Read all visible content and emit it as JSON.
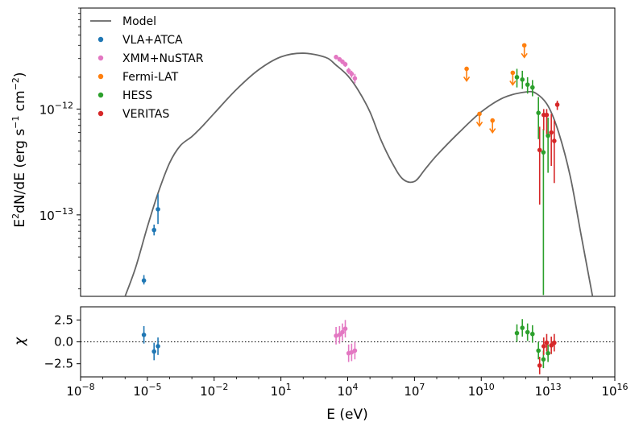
{
  "chart_data": [
    {
      "type": "scatter",
      "panel": "sed",
      "xscale": "log",
      "yscale": "log",
      "xlim": [
        1e-08,
        1e+16
      ],
      "ylim": [
        1.7e-14,
        9e-12
      ],
      "xlabel": "E (eV)",
      "ylabel": {
        "prefix": "E",
        "sup1": "2",
        "main": "dN/dE (erg s",
        "sup2": "−1",
        "mid": " cm",
        "sup3": "−2",
        "end": ")"
      },
      "yticks": [
        {
          "value": 1e-13,
          "base": "10",
          "exp": "−13"
        },
        {
          "value": 1e-12,
          "base": "10",
          "exp": "−12"
        }
      ],
      "model": {
        "name": "Model",
        "color": "#666666",
        "x": [
          1e-06,
          3e-06,
          1e-05,
          3e-05,
          0.0001,
          0.0003,
          0.001,
          0.003,
          0.01,
          0.1,
          1,
          10,
          100,
          1000,
          3000,
          10000.0,
          30000.0,
          100000.0,
          300000.0,
          1000000.0,
          3000000.0,
          10000000.0,
          30000000.0,
          100000000.0,
          1000000000.0,
          10000000000.0,
          100000000000.0,
          1000000000000.0,
          3000000000000.0,
          10000000000000.0,
          30000000000000.0,
          100000000000000.0,
          300000000000000.0,
          1000000000000000.0
        ],
        "y": [
          1.7e-14,
          3.2e-14,
          7.7e-14,
          1.6e-13,
          3.1e-13,
          4.5e-13,
          5.5e-13,
          6.9e-13,
          9.1e-13,
          1.53e-12,
          2.35e-12,
          3.11e-12,
          3.37e-12,
          3.08e-12,
          2.6e-12,
          2.07e-12,
          1.5e-12,
          9.4e-13,
          5.2e-13,
          3.09e-13,
          2.18e-13,
          2.07e-13,
          2.7e-13,
          3.65e-13,
          6e-13,
          9.4e-13,
          1.28e-12,
          1.45e-12,
          1.4e-12,
          1.07e-12,
          6e-13,
          2.3e-13,
          6.6e-14,
          1.7e-14
        ]
      },
      "series": [
        {
          "name": "VLA+ATCA",
          "color": "#1f77b4",
          "x": [
            7e-06,
            2e-05,
            3e-05
          ],
          "y": [
            2.4e-14,
            7.2e-14,
            1.13e-13
          ],
          "ylo": [
            2.2e-14,
            6.4e-14,
            8.2e-14
          ],
          "yhi": [
            2.7e-14,
            8.1e-14,
            1.57e-13
          ]
        },
        {
          "name": "XMM+NuSTAR",
          "color": "#e377c2",
          "x": [
            3000,
            4300,
            5800,
            7800,
            11000,
            15000,
            21000
          ],
          "y": [
            3.1e-12,
            2.95e-12,
            2.8e-12,
            2.65e-12,
            2.3e-12,
            2.15e-12,
            1.95e-12
          ],
          "ylo": [
            2.95e-12,
            2.8e-12,
            2.65e-12,
            2.5e-12,
            2.15e-12,
            1.98e-12,
            1.75e-12
          ],
          "yhi": [
            3.25e-12,
            3.1e-12,
            2.95e-12,
            2.8e-12,
            2.45e-12,
            2.3e-12,
            2.15e-12
          ]
        },
        {
          "name": "Fermi-LAT",
          "color": "#ff7f0e",
          "upper_limit": true,
          "x": [
            2200000000.0,
            8300000000.0,
            32000000000.0,
            260000000000.0,
            860000000000.0
          ],
          "y": [
            2.4e-12,
            9e-13,
            7.8e-13,
            2.2e-12,
            4e-12
          ]
        },
        {
          "name": "HESS",
          "color": "#2ca02c",
          "x": [
            400000000000.0,
            700000000000.0,
            1200000000000.0,
            2000000000000.0,
            3700000000000.0,
            6200000000000.0,
            10000000000000.0
          ],
          "y": [
            2e-12,
            1.9e-12,
            1.7e-12,
            1.6e-12,
            9.2e-13,
            3.9e-13,
            5.6e-13
          ],
          "ylo": [
            1.6e-12,
            1.55e-12,
            1.4e-12,
            1.32e-12,
            5.2e-13,
            1.75e-14,
            2.5e-13
          ],
          "yhi": [
            2.4e-12,
            2.3e-12,
            2e-12,
            1.88e-12,
            1.3e-12,
            6.5e-13,
            8.3e-13
          ]
        },
        {
          "name": "VERITAS",
          "color": "#d62728",
          "x": [
            4200000000000.0,
            6400000000000.0,
            8700000000000.0,
            14000000000000.0,
            19000000000000.0,
            26000000000000.0
          ],
          "y": [
            4.1e-13,
            8.8e-13,
            8.8e-13,
            6e-13,
            5e-13,
            1.1e-12
          ],
          "ylo": [
            1.25e-13,
            6.3e-13,
            5.8e-13,
            2.9e-13,
            2e-13,
            9.8e-13
          ],
          "yhi": [
            6.8e-13,
            1e-12,
            1e-12,
            9e-13,
            7.8e-13,
            1.2e-12
          ]
        }
      ],
      "legend": {
        "placement": "top-left"
      }
    },
    {
      "type": "scatter",
      "panel": "residuals",
      "xscale": "log",
      "xlim": [
        1e-08,
        1e+16
      ],
      "ylim": [
        -4,
        4
      ],
      "ylabel": "χ",
      "xlabel": "E (eV)",
      "yticks": [
        2.5,
        0.0,
        -2.5
      ],
      "ytick_labels": [
        "2.5",
        "0.0",
        "−2.5"
      ],
      "xticks": [
        {
          "value": 1e-08,
          "base": "10",
          "exp": "−8"
        },
        {
          "value": 1e-05,
          "base": "10",
          "exp": "−5"
        },
        {
          "value": 0.01,
          "base": "10",
          "exp": "−2"
        },
        {
          "value": 10,
          "base": "10",
          "exp": "1"
        },
        {
          "value": 10000.0,
          "base": "10",
          "exp": "4"
        },
        {
          "value": 10000000.0,
          "base": "10",
          "exp": "7"
        },
        {
          "value": 10000000000.0,
          "base": "10",
          "exp": "10"
        },
        {
          "value": 10000000000000.0,
          "base": "10",
          "exp": "13"
        },
        {
          "value": 1e+16,
          "base": "10",
          "exp": "16"
        }
      ],
      "zero_line": "dotted",
      "series": [
        {
          "name": "VLA+ATCA",
          "color": "#1f77b4",
          "x": [
            7e-06,
            2e-05,
            3e-05
          ],
          "y": [
            0.8,
            -1.1,
            -0.5
          ],
          "err": [
            1.0,
            1.0,
            1.0
          ]
        },
        {
          "name": "XMM+NuSTAR",
          "color": "#e377c2",
          "x": [
            3000,
            4300,
            5800,
            7800,
            11000,
            15000,
            21000
          ],
          "y": [
            0.7,
            0.8,
            1.1,
            1.5,
            -1.3,
            -1.2,
            -1.0
          ],
          "err": [
            1.0,
            1.0,
            1.0,
            1.0,
            1.0,
            1.0,
            1.0
          ]
        },
        {
          "name": "HESS",
          "color": "#2ca02c",
          "x": [
            400000000000.0,
            700000000000.0,
            1200000000000.0,
            2000000000000.0,
            3700000000000.0,
            6200000000000.0,
            10000000000000.0
          ],
          "y": [
            1.0,
            1.6,
            1.1,
            0.9,
            -1.0,
            -2.0,
            -1.3
          ],
          "err": [
            1.0,
            1.0,
            1.0,
            1.0,
            1.0,
            1.0,
            1.0
          ]
        },
        {
          "name": "VERITAS",
          "color": "#d62728",
          "x": [
            4200000000000.0,
            6400000000000.0,
            8700000000000.0,
            14000000000000.0,
            19000000000000.0
          ],
          "y": [
            -2.7,
            -0.5,
            -0.1,
            -0.4,
            -0.1
          ],
          "err": [
            1.0,
            1.0,
            1.0,
            1.0,
            1.0
          ]
        }
      ]
    }
  ]
}
